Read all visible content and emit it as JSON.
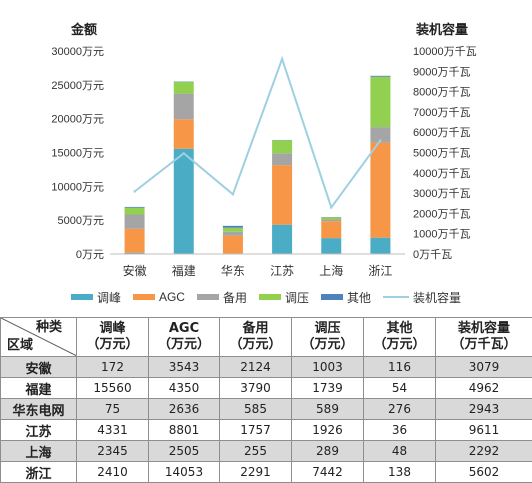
{
  "chart_data": {
    "type": "bar",
    "stacked": true,
    "categories": [
      "安徽",
      "福建",
      "华东",
      "江苏",
      "上海",
      "浙江"
    ],
    "left_axis": {
      "title": "金额",
      "range": [
        0,
        30000
      ],
      "ticks": [
        "0万元",
        "5000万元",
        "10000万元",
        "15000万元",
        "20000万元",
        "25000万元",
        "30000万元"
      ]
    },
    "right_axis": {
      "title": "装机容量",
      "range": [
        0,
        10000
      ],
      "ticks": [
        "0万千瓦",
        "1000万千瓦",
        "2000万千瓦",
        "3000万千瓦",
        "4000万千瓦",
        "5000万千瓦",
        "6000万千瓦",
        "7000万千瓦",
        "8000万千瓦",
        "9000万千瓦",
        "10000万千瓦"
      ]
    },
    "series": [
      {
        "name": "调峰",
        "color": "#4bacc6",
        "values": [
          172,
          15560,
          75,
          4331,
          2345,
          2410
        ]
      },
      {
        "name": "AGC",
        "color": "#f79646",
        "values": [
          3543,
          4350,
          2636,
          8801,
          2505,
          14053
        ]
      },
      {
        "name": "备用",
        "color": "#a5a5a5",
        "values": [
          2124,
          3790,
          585,
          1757,
          255,
          2291
        ]
      },
      {
        "name": "调压",
        "color": "#92d050",
        "values": [
          1003,
          1739,
          589,
          1926,
          289,
          7442
        ]
      },
      {
        "name": "其他",
        "color": "#4f81bd",
        "values": [
          116,
          54,
          276,
          36,
          48,
          138
        ]
      }
    ],
    "line_series": {
      "name": "装机容量",
      "color": "#9ed0e2",
      "values": [
        3079,
        4962,
        2943,
        9611,
        2292,
        5602
      ]
    },
    "legend_position": "bottom",
    "grid": false
  },
  "table": {
    "corner_top": "种类",
    "corner_bottom": "区域",
    "headers": [
      {
        "l1": "调峰",
        "l2": "（万元）"
      },
      {
        "l1": "AGC",
        "l2": "（万元）"
      },
      {
        "l1": "备用",
        "l2": "（万元）"
      },
      {
        "l1": "调压",
        "l2": "（万元）"
      },
      {
        "l1": "其他",
        "l2": "（万元）"
      },
      {
        "l1": "装机容量",
        "l2": "（万千瓦）"
      }
    ],
    "rows": [
      {
        "region": "安徽",
        "cells": [
          "172",
          "3543",
          "2124",
          "1003",
          "116",
          "3079"
        ]
      },
      {
        "region": "福建",
        "cells": [
          "15560",
          "4350",
          "3790",
          "1739",
          "54",
          "4962"
        ]
      },
      {
        "region": "华东电网",
        "cells": [
          "75",
          "2636",
          "585",
          "589",
          "276",
          "2943"
        ]
      },
      {
        "region": "江苏",
        "cells": [
          "4331",
          "8801",
          "1757",
          "1926",
          "36",
          "9611"
        ]
      },
      {
        "region": "上海",
        "cells": [
          "2345",
          "2505",
          "255",
          "289",
          "48",
          "2292"
        ]
      },
      {
        "region": "浙江",
        "cells": [
          "2410",
          "14053",
          "2291",
          "7442",
          "138",
          "5602"
        ]
      }
    ]
  }
}
